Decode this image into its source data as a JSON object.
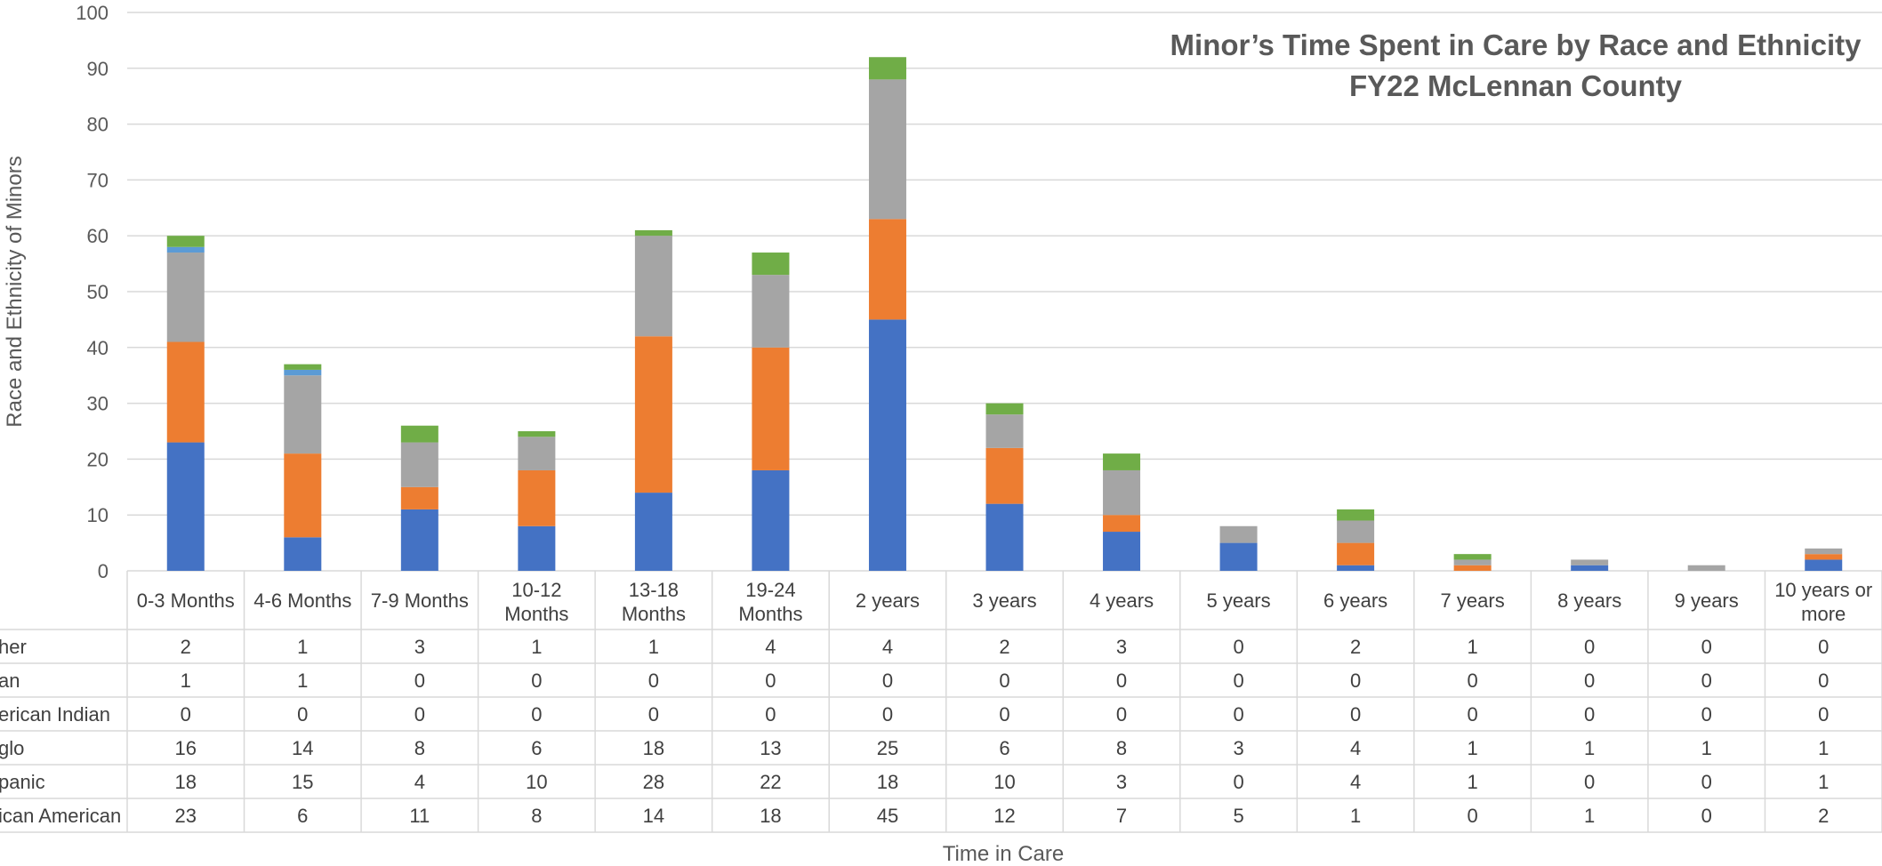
{
  "chart_data": {
    "type": "bar",
    "stacked": true,
    "title": "Minor’s Time Spent in Care by Race and Ethnicity",
    "subtitle": "FY22 McLennan County",
    "xlabel": "Time in Care",
    "ylabel": "Race and Ethnicity of Minors",
    "ylim": [
      0,
      100
    ],
    "yticks": [
      0,
      10,
      20,
      30,
      40,
      50,
      60,
      70,
      80,
      90,
      100
    ],
    "grid": true,
    "legend": "data-table",
    "categories": [
      [
        "0-3 Months"
      ],
      [
        "4-6 Months"
      ],
      [
        "7-9 Months"
      ],
      [
        "10-12",
        "Months"
      ],
      [
        "13-18",
        "Months"
      ],
      [
        "19-24",
        "Months"
      ],
      [
        "2 years"
      ],
      [
        "3 years"
      ],
      [
        "4 years"
      ],
      [
        "5 years"
      ],
      [
        "6 years"
      ],
      [
        "7 years"
      ],
      [
        "8 years"
      ],
      [
        "9 years"
      ],
      [
        "10 years or",
        "more"
      ]
    ],
    "series": [
      {
        "name": "African American",
        "row_label": "ican American",
        "color": "#4472C4",
        "values": [
          23,
          6,
          11,
          8,
          14,
          18,
          45,
          12,
          7,
          5,
          1,
          0,
          1,
          0,
          2
        ]
      },
      {
        "name": "Hispanic",
        "row_label": "panic",
        "color": "#ED7D31",
        "values": [
          18,
          15,
          4,
          10,
          28,
          22,
          18,
          10,
          3,
          0,
          4,
          1,
          0,
          0,
          1
        ]
      },
      {
        "name": "Anglo",
        "row_label": "glo",
        "color": "#A5A5A5",
        "values": [
          16,
          14,
          8,
          6,
          18,
          13,
          25,
          6,
          8,
          3,
          4,
          1,
          1,
          1,
          1
        ]
      },
      {
        "name": "American Indian",
        "row_label": "erican Indian",
        "color": "#FFC000",
        "values": [
          0,
          0,
          0,
          0,
          0,
          0,
          0,
          0,
          0,
          0,
          0,
          0,
          0,
          0,
          0
        ]
      },
      {
        "name": "Asian",
        "row_label": "an",
        "color": "#5B9BD5",
        "values": [
          1,
          1,
          0,
          0,
          0,
          0,
          0,
          0,
          0,
          0,
          0,
          0,
          0,
          0,
          0
        ]
      },
      {
        "name": "Other",
        "row_label": "her",
        "color": "#70AD47",
        "values": [
          2,
          1,
          3,
          1,
          1,
          4,
          4,
          2,
          3,
          0,
          2,
          1,
          0,
          0,
          0
        ]
      }
    ],
    "table_row_order": [
      "Other",
      "Asian",
      "American Indian",
      "Anglo",
      "Hispanic",
      "African American"
    ]
  }
}
